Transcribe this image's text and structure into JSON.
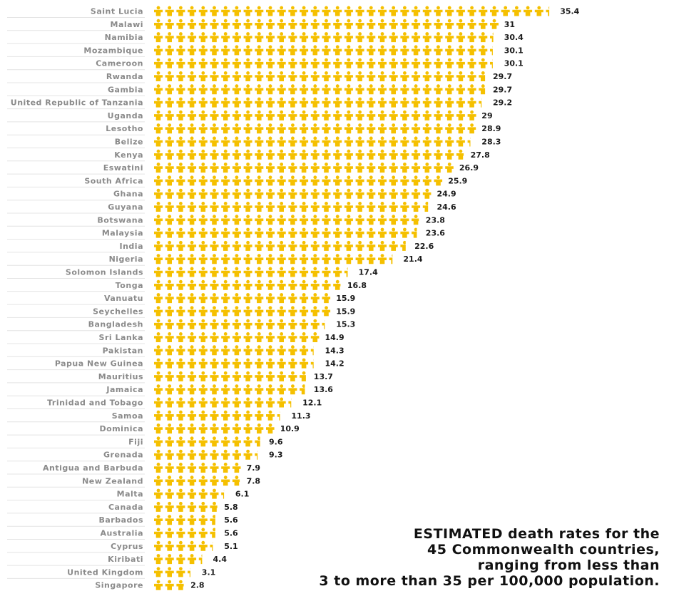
{
  "colors": {
    "icon": "#F5C000",
    "label": "#8a8a8a",
    "value": "#1a1a1a",
    "rule": "#e4e4e4"
  },
  "icon_name": "person-icon",
  "caption": {
    "line1": "ESTIMATED death rates for the",
    "line2": "45 Commonwealth countries,",
    "line3": "ranging from less than",
    "line4": "3 to more than 35 per 100,000 population."
  },
  "chart_data": {
    "type": "bar",
    "orientation": "horizontal",
    "mark": "pictogram-person",
    "unit_per_icon": 1,
    "categories": [
      "Saint Lucia",
      "Malawi",
      "Namibia",
      "Mozambique",
      "Cameroon",
      "Rwanda",
      "Gambia",
      "United Republic of Tanzania",
      "Uganda",
      "Lesotho",
      "Belize",
      "Kenya",
      "Eswatini",
      "South Africa",
      "Ghana",
      "Guyana",
      "Botswana",
      "Malaysia",
      "India",
      "Nigeria",
      "Solomon Islands",
      "Tonga",
      "Vanuatu",
      "Seychelles",
      "Bangladesh",
      "Sri Lanka",
      "Pakistan",
      "Papua New Guinea",
      "Mauritius",
      "Jamaica",
      "Trinidad and Tobago",
      "Samoa",
      "Dominica",
      "Fiji",
      "Grenada",
      "Antigua and Barbuda",
      "New Zealand",
      "Malta",
      "Canada",
      "Barbados",
      "Australia",
      "Cyprus",
      "Kiribati",
      "United Kingdom",
      "Singapore"
    ],
    "values": [
      35.4,
      31,
      30.4,
      30.1,
      30.1,
      29.7,
      29.7,
      29.2,
      29,
      28.9,
      28.3,
      27.8,
      26.9,
      25.9,
      24.9,
      24.6,
      23.8,
      23.6,
      22.6,
      21.4,
      17.4,
      16.8,
      15.9,
      15.9,
      15.3,
      14.9,
      14.3,
      14.2,
      13.7,
      13.6,
      12.1,
      11.3,
      10.9,
      9.6,
      9.3,
      7.9,
      7.8,
      6.1,
      5.8,
      5.6,
      5.6,
      5.1,
      4.4,
      3.1,
      2.8
    ],
    "value_labels": [
      "35.4",
      "31",
      "30.4",
      "30.1",
      "30.1",
      "29.7",
      "29.7",
      "29.2",
      "29",
      "28.9",
      "28.3",
      "27.8",
      "26.9",
      "25.9",
      "24.9",
      "24.6",
      "23.8",
      "23.6",
      "22.6",
      "21.4",
      "17.4",
      "16.8",
      "15.9",
      "15.9",
      "15.3",
      "14.9",
      "14.3",
      "14.2",
      "13.7",
      "13.6",
      "12.1",
      "11.3",
      "10.9",
      "9.6",
      "9.3",
      "7.9",
      "7.8",
      "6.1",
      "5.8",
      "5.6",
      "5.6",
      "5.1",
      "4.4",
      "3.1",
      "2.8"
    ]
  }
}
